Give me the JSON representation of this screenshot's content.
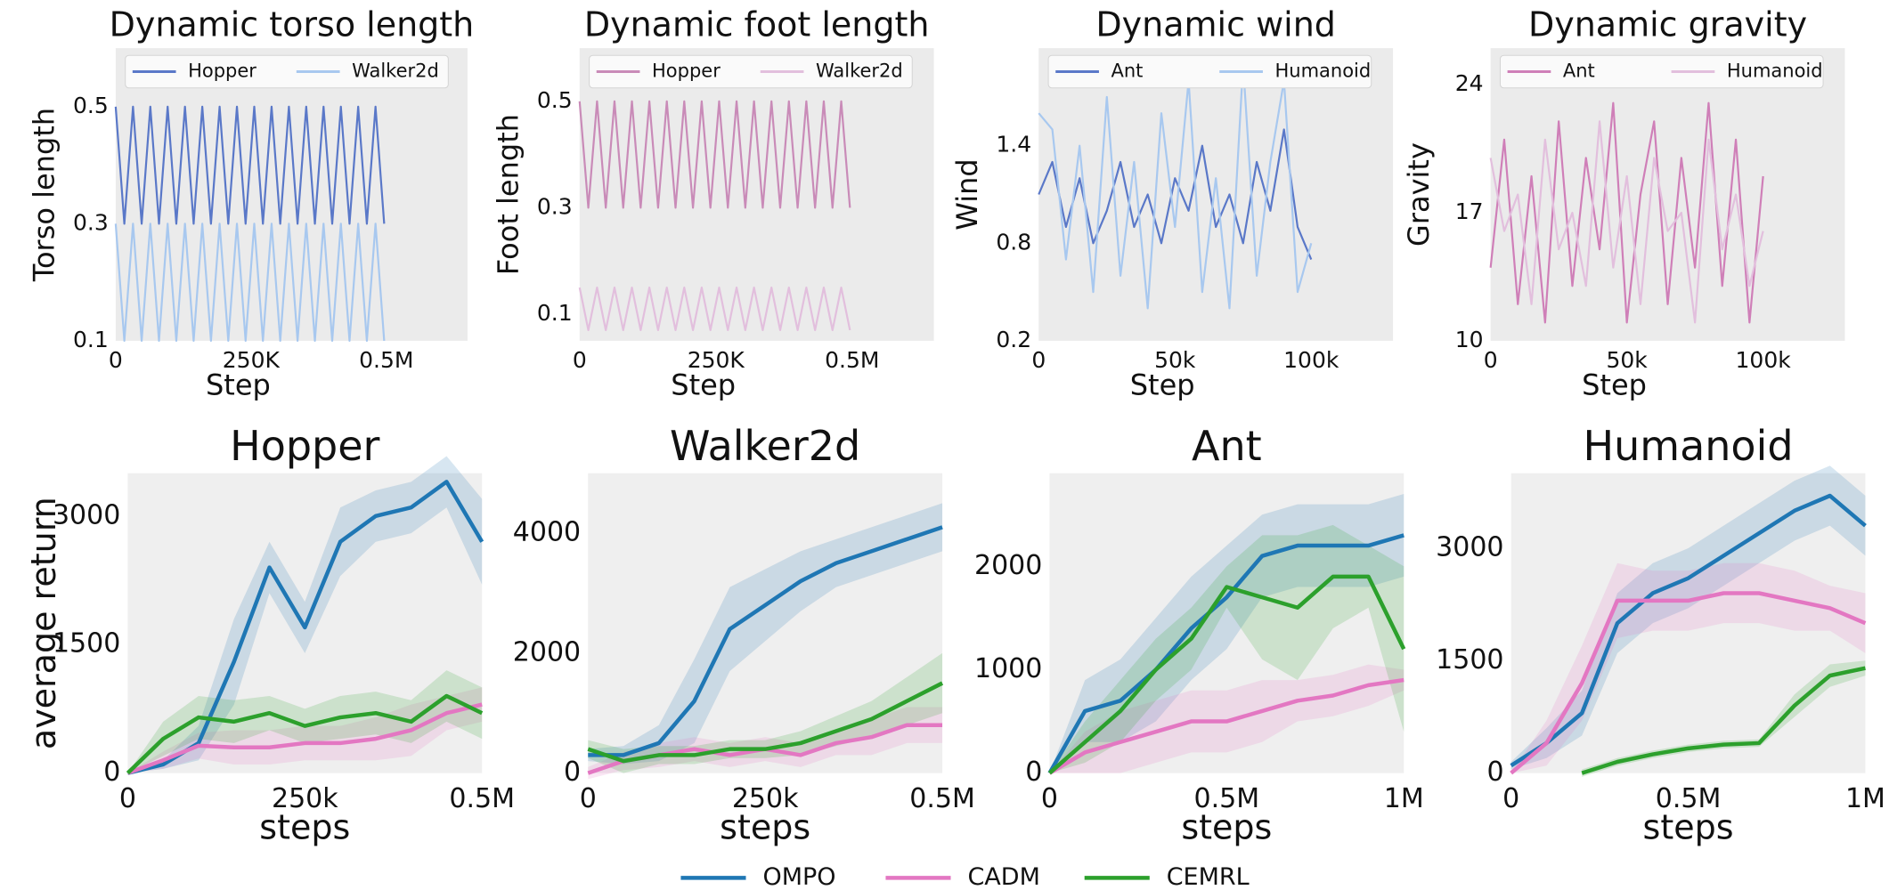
{
  "chart_data": [
    {
      "type": "line",
      "title": "Dynamic torso length",
      "xlabel": "Step",
      "ylabel": "Torso length",
      "x": [
        0,
        16000,
        32000,
        48000,
        64000,
        80000,
        96000,
        112000,
        128000,
        144000,
        160000,
        176000,
        192000,
        208000,
        224000,
        240000,
        256000,
        272000,
        288000,
        304000,
        320000,
        336000,
        352000,
        368000,
        384000,
        400000,
        416000,
        432000,
        448000,
        464000,
        480000,
        496000
      ],
      "series": [
        {
          "name": "Hopper",
          "color": "#5a78c8",
          "values": [
            0.5,
            0.3,
            0.5,
            0.3,
            0.5,
            0.3,
            0.5,
            0.3,
            0.5,
            0.3,
            0.5,
            0.3,
            0.5,
            0.3,
            0.5,
            0.3,
            0.5,
            0.3,
            0.5,
            0.3,
            0.5,
            0.3,
            0.5,
            0.3,
            0.5,
            0.3,
            0.5,
            0.3,
            0.5,
            0.3,
            0.5,
            0.3
          ]
        },
        {
          "name": "Walker2d",
          "color": "#a8c8ef",
          "values": [
            0.3,
            0.1,
            0.3,
            0.1,
            0.3,
            0.1,
            0.3,
            0.1,
            0.3,
            0.1,
            0.3,
            0.1,
            0.3,
            0.1,
            0.3,
            0.1,
            0.3,
            0.1,
            0.3,
            0.1,
            0.3,
            0.1,
            0.3,
            0.1,
            0.3,
            0.1,
            0.3,
            0.1,
            0.3,
            0.1,
            0.3,
            0.1
          ]
        }
      ],
      "xlim": [
        0,
        650000
      ],
      "ylim": [
        0.1,
        0.6
      ],
      "xticks": [
        0,
        {
          "value": 250000,
          "label": "250K"
        },
        {
          "value": 500000,
          "label": "0.5M"
        }
      ],
      "yticks": [
        0.1,
        0.3,
        0.5
      ],
      "legend": "upper center"
    },
    {
      "type": "line",
      "title": "Dynamic foot length",
      "xlabel": "Step",
      "ylabel": "Foot length",
      "x": [
        0,
        16000,
        32000,
        48000,
        64000,
        80000,
        96000,
        112000,
        128000,
        144000,
        160000,
        176000,
        192000,
        208000,
        224000,
        240000,
        256000,
        272000,
        288000,
        304000,
        320000,
        336000,
        352000,
        368000,
        384000,
        400000,
        416000,
        432000,
        448000,
        464000,
        480000,
        496000
      ],
      "series": [
        {
          "name": "Hopper",
          "color": "#c98bb8",
          "values": [
            0.5,
            0.3,
            0.5,
            0.3,
            0.5,
            0.3,
            0.5,
            0.3,
            0.5,
            0.3,
            0.5,
            0.3,
            0.5,
            0.3,
            0.5,
            0.3,
            0.5,
            0.3,
            0.5,
            0.3,
            0.5,
            0.3,
            0.5,
            0.3,
            0.5,
            0.3,
            0.5,
            0.3,
            0.5,
            0.3,
            0.5,
            0.3
          ]
        },
        {
          "name": "Walker2d",
          "color": "#e2bfdd",
          "values": [
            0.15,
            0.07,
            0.15,
            0.07,
            0.15,
            0.07,
            0.15,
            0.07,
            0.15,
            0.07,
            0.15,
            0.07,
            0.15,
            0.07,
            0.15,
            0.07,
            0.15,
            0.07,
            0.15,
            0.07,
            0.15,
            0.07,
            0.15,
            0.07,
            0.15,
            0.07,
            0.15,
            0.07,
            0.15,
            0.07,
            0.15,
            0.07
          ]
        }
      ],
      "xlim": [
        0,
        650000
      ],
      "ylim": [
        0.05,
        0.6
      ],
      "xticks": [
        0,
        {
          "value": 250000,
          "label": "250K"
        },
        {
          "value": 500000,
          "label": "0.5M"
        }
      ],
      "yticks": [
        0.1,
        0.3,
        0.5
      ],
      "legend": "upper center"
    },
    {
      "type": "line",
      "title": "Dynamic wind",
      "xlabel": "Step",
      "ylabel": "Wind",
      "x": [
        0,
        5000,
        10000,
        15000,
        20000,
        25000,
        30000,
        35000,
        40000,
        45000,
        50000,
        55000,
        60000,
        65000,
        70000,
        75000,
        80000,
        85000,
        90000,
        95000,
        100000
      ],
      "series": [
        {
          "name": "Ant",
          "color": "#5a78c8",
          "values": [
            1.1,
            1.3,
            0.9,
            1.2,
            0.8,
            1.0,
            1.3,
            0.9,
            1.1,
            0.8,
            1.2,
            1.0,
            1.4,
            0.9,
            1.1,
            0.8,
            1.3,
            1.0,
            1.5,
            0.9,
            0.7
          ]
        },
        {
          "name": "Humanoid",
          "color": "#a8c8ef",
          "values": [
            1.6,
            1.5,
            0.7,
            1.4,
            0.5,
            1.7,
            0.6,
            1.3,
            0.4,
            1.6,
            0.9,
            1.8,
            0.5,
            1.2,
            0.4,
            1.9,
            0.6,
            1.3,
            1.8,
            0.5,
            0.8
          ]
        }
      ],
      "xlim": [
        0,
        130000
      ],
      "ylim": [
        0.2,
        2.0
      ],
      "xticks": [
        0,
        {
          "value": 50000,
          "label": "50k"
        },
        {
          "value": 100000,
          "label": "100k"
        }
      ],
      "yticks": [
        0.2,
        0.8,
        1.4
      ],
      "legend": "upper center"
    },
    {
      "type": "line",
      "title": "Dynamic gravity",
      "xlabel": "Step",
      "ylabel": "Gravity",
      "x": [
        0,
        5000,
        10000,
        15000,
        20000,
        25000,
        30000,
        35000,
        40000,
        45000,
        50000,
        55000,
        60000,
        65000,
        70000,
        75000,
        80000,
        85000,
        90000,
        95000,
        100000
      ],
      "series": [
        {
          "name": "Ant",
          "color": "#cf7fb8",
          "values": [
            14,
            21,
            12,
            19,
            11,
            22,
            13,
            20,
            15,
            23,
            11,
            18,
            22,
            12,
            20,
            14,
            23,
            13,
            21,
            11,
            19
          ]
        },
        {
          "name": "Humanoid",
          "color": "#e2bfdd",
          "values": [
            20,
            16,
            18,
            12,
            21,
            15,
            17,
            13,
            22,
            14,
            19,
            12,
            20,
            16,
            17,
            11,
            21,
            15,
            18,
            13,
            16
          ]
        }
      ],
      "xlim": [
        0,
        130000
      ],
      "ylim": [
        10,
        26
      ],
      "xticks": [
        0,
        {
          "value": 50000,
          "label": "50k"
        },
        {
          "value": 100000,
          "label": "100k"
        }
      ],
      "yticks": [
        10,
        17,
        24
      ],
      "legend": "upper center"
    },
    {
      "type": "line",
      "title": "Hopper",
      "xlabel": "steps",
      "ylabel": "average return",
      "x": [
        0,
        50000,
        100000,
        150000,
        200000,
        250000,
        300000,
        350000,
        400000,
        450000,
        500000
      ],
      "series": [
        {
          "color": "#1f77b4",
          "values": [
            0,
            100,
            350,
            1300,
            2400,
            1700,
            2700,
            3000,
            3100,
            3400,
            2700
          ],
          "band": [
            0,
            50,
            200,
            500,
            300,
            300,
            400,
            300,
            300,
            300,
            500
          ]
        },
        {
          "color": "#e377c2",
          "values": [
            0,
            150,
            320,
            300,
            300,
            350,
            350,
            400,
            500,
            700,
            800
          ],
          "band": [
            0,
            100,
            150,
            200,
            200,
            200,
            200,
            250,
            300,
            200,
            200
          ]
        },
        {
          "color": "#2ca02c",
          "values": [
            0,
            400,
            650,
            600,
            700,
            550,
            650,
            700,
            600,
            900,
            700
          ],
          "band": [
            0,
            200,
            250,
            250,
            200,
            200,
            250,
            250,
            250,
            300,
            300
          ]
        }
      ],
      "xlim": [
        0,
        500000
      ],
      "ylim": [
        0,
        3500
      ],
      "xticks": [
        0,
        {
          "value": 250000,
          "label": "250k"
        },
        {
          "value": 500000,
          "label": "0.5M"
        }
      ],
      "yticks": [
        0,
        1500,
        3000
      ]
    },
    {
      "type": "line",
      "title": "Walker2d",
      "xlabel": "steps",
      "x": [
        0,
        50000,
        100000,
        150000,
        200000,
        250000,
        300000,
        350000,
        400000,
        450000,
        500000
      ],
      "series": [
        {
          "color": "#1f77b4",
          "values": [
            300,
            300,
            500,
            1200,
            2400,
            2800,
            3200,
            3500,
            3700,
            3900,
            4100
          ],
          "band": [
            100,
            150,
            300,
            700,
            700,
            600,
            500,
            400,
            400,
            400,
            400
          ]
        },
        {
          "color": "#e377c2",
          "values": [
            0,
            200,
            300,
            400,
            300,
            400,
            300,
            500,
            600,
            800,
            800
          ],
          "band": [
            100,
            150,
            200,
            200,
            200,
            200,
            200,
            200,
            300,
            300,
            300
          ]
        },
        {
          "color": "#2ca02c",
          "values": [
            400,
            200,
            300,
            300,
            400,
            400,
            500,
            700,
            900,
            1200,
            1500
          ],
          "band": [
            150,
            200,
            150,
            150,
            150,
            150,
            200,
            250,
            300,
            400,
            500
          ]
        }
      ],
      "xlim": [
        0,
        500000
      ],
      "ylim": [
        0,
        5000
      ],
      "xticks": [
        0,
        {
          "value": 250000,
          "label": "250k"
        },
        {
          "value": 500000,
          "label": "0.5M"
        }
      ],
      "yticks": [
        0,
        2000,
        4000
      ]
    },
    {
      "type": "line",
      "title": "Ant",
      "xlabel": "steps",
      "x": [
        0,
        100000,
        200000,
        300000,
        400000,
        500000,
        600000,
        700000,
        800000,
        900000,
        1000000
      ],
      "series": [
        {
          "color": "#1f77b4",
          "values": [
            0,
            600,
            700,
            1000,
            1400,
            1700,
            2100,
            2200,
            2200,
            2200,
            2300
          ],
          "band": [
            0,
            300,
            400,
            500,
            500,
            500,
            400,
            400,
            400,
            400,
            400
          ]
        },
        {
          "color": "#e377c2",
          "values": [
            0,
            200,
            300,
            400,
            500,
            500,
            600,
            700,
            750,
            850,
            900
          ],
          "band": [
            0,
            200,
            300,
            300,
            300,
            300,
            300,
            200,
            200,
            200,
            100
          ]
        },
        {
          "color": "#2ca02c",
          "values": [
            0,
            300,
            600,
            1000,
            1300,
            1800,
            1700,
            1600,
            1900,
            1900,
            1200
          ],
          "band": [
            0,
            200,
            300,
            300,
            300,
            200,
            600,
            700,
            500,
            300,
            800
          ]
        }
      ],
      "xlim": [
        0,
        1000000
      ],
      "ylim": [
        0,
        2900
      ],
      "xticks": [
        0,
        {
          "value": 500000,
          "label": "0.5M"
        },
        {
          "value": 1000000,
          "label": "1M"
        }
      ],
      "yticks": [
        0,
        1000,
        2000
      ]
    },
    {
      "type": "line",
      "title": "Humanoid",
      "xlabel": "steps",
      "x": [
        0,
        100000,
        200000,
        300000,
        400000,
        500000,
        600000,
        700000,
        800000,
        900000,
        1000000
      ],
      "series": [
        {
          "color": "#1f77b4",
          "values": [
            100,
            400,
            800,
            2000,
            2400,
            2600,
            2900,
            3200,
            3500,
            3700,
            3300
          ],
          "band": [
            50,
            200,
            300,
            400,
            400,
            400,
            400,
            400,
            400,
            400,
            400
          ]
        },
        {
          "color": "#e377c2",
          "values": [
            0,
            400,
            1200,
            2300,
            2300,
            2300,
            2400,
            2400,
            2300,
            2200,
            2000
          ],
          "band": [
            0,
            300,
            500,
            500,
            400,
            400,
            400,
            400,
            400,
            300,
            400
          ]
        },
        {
          "color": "#2ca02c",
          "values": [
            null,
            null,
            0,
            150,
            250,
            330,
            380,
            400,
            900,
            1300,
            1400
          ],
          "band": [
            null,
            null,
            50,
            50,
            50,
            50,
            50,
            50,
            150,
            150,
            100
          ]
        }
      ],
      "xlim": [
        0,
        1000000
      ],
      "ylim": [
        0,
        4000
      ],
      "xticks": [
        0,
        {
          "value": 500000,
          "label": "0.5M"
        },
        {
          "value": 1000000,
          "label": "1M"
        }
      ],
      "yticks": [
        0,
        1500,
        3000
      ]
    }
  ],
  "legend": [
    {
      "name": "OMPO",
      "color": "#1f77b4"
    },
    {
      "name": "CADM",
      "color": "#e377c2"
    },
    {
      "name": "CEMRL",
      "color": "#2ca02c"
    }
  ]
}
